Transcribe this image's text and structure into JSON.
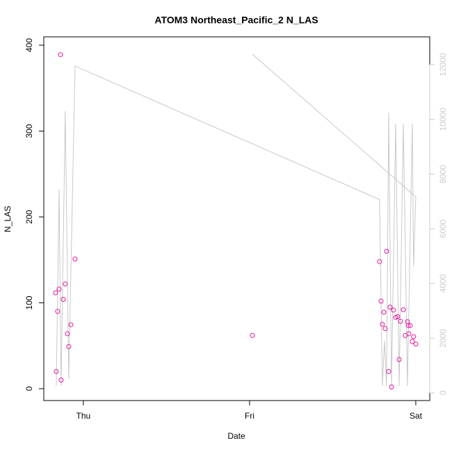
{
  "chart_data": {
    "type": "scatter",
    "title": "ATOM3 Northeast_Pacific_2 N_LAS",
    "xlabel": "Date",
    "ylabel": "N_LAS",
    "xlim": [
      -0.238,
      2.084
    ],
    "xticks": [
      {
        "value": 0,
        "label": "Thu"
      },
      {
        "value": 1,
        "label": "Fri"
      },
      {
        "value": 2,
        "label": "Sat"
      }
    ],
    "ylim": [
      -13.8,
      409.7
    ],
    "yticks": [
      0,
      100,
      200,
      300,
      400
    ],
    "y2lim": [
      -280,
      13017
    ],
    "y2ticks": [
      0,
      2000,
      4000,
      6000,
      8000,
      10000,
      12000
    ],
    "series": [
      {
        "type": "scatter",
        "color": "#e8179c",
        "x": [
          -0.167,
          -0.163,
          -0.155,
          -0.146,
          -0.138,
          -0.134,
          -0.121,
          -0.109,
          -0.096,
          -0.088,
          -0.075,
          -0.05,
          1.017,
          1.782,
          1.791,
          1.799,
          1.808,
          1.816,
          1.824,
          1.837,
          1.845,
          1.854,
          1.866,
          1.879,
          1.891,
          1.9,
          1.908,
          1.925,
          1.937,
          1.95,
          1.954,
          1.958,
          1.967,
          1.979,
          1.987,
          2.0
        ],
        "values": [
          111.7,
          20,
          90,
          116,
          389,
          10,
          104,
          122,
          64,
          49,
          74.5,
          151,
          62,
          148,
          102,
          75,
          89,
          70,
          160,
          20,
          95,
          2,
          91.5,
          83,
          84,
          34,
          78.5,
          92,
          62,
          78,
          73.5,
          64,
          73.5,
          55,
          60.5,
          52
        ]
      },
      {
        "type": "line",
        "axis": "y2",
        "color": "#c8c8c8",
        "x": [
          -0.163,
          -0.146,
          -0.134,
          -0.109,
          -0.088,
          -0.05,
          1.782,
          1.799,
          1.812,
          1.824,
          1.837,
          1.854,
          1.879,
          1.9,
          1.925,
          1.95,
          1.979,
          1.987,
          2.0,
          1.017
        ],
        "values": [
          254,
          7450,
          254,
          10298,
          508,
          11950,
          7068,
          254,
          1907,
          254,
          10247,
          254,
          9840,
          254,
          9840,
          254,
          9840,
          4627,
          7170,
          12383
        ]
      }
    ]
  }
}
